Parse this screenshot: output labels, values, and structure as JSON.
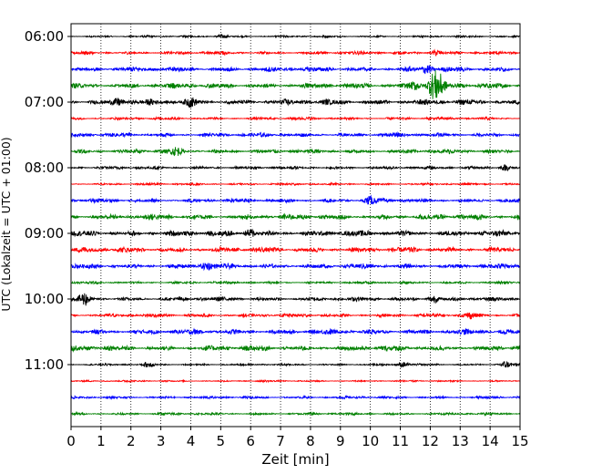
{
  "chart_data": {
    "type": "line",
    "xlabel": "Zeit  [min]",
    "ylabel": "UTC (Lokalzeit = UTC + 01:00)",
    "xlim": [
      0,
      15
    ],
    "xticks": [
      0,
      1,
      2,
      3,
      4,
      5,
      6,
      7,
      8,
      9,
      10,
      11,
      12,
      13,
      14,
      15
    ],
    "x_grid": true,
    "x_grid_style": "dotted",
    "y_tick_labels": [
      "06:00",
      "07:00",
      "08:00",
      "09:00",
      "10:00",
      "11:00"
    ],
    "row_interval_minutes": 15,
    "series": [
      {
        "start": "06:00",
        "color": "#000000",
        "amplitude": 0.35,
        "events": [
          {
            "x": 5.0,
            "amp": 0.6
          }
        ]
      },
      {
        "start": "06:15",
        "color": "#ff0000",
        "amplitude": 0.55,
        "events": [
          {
            "x": 12.2,
            "amp": 0.9
          }
        ]
      },
      {
        "start": "06:30",
        "color": "#0000ff",
        "amplitude": 0.85,
        "events": [
          {
            "x": 11.9,
            "amp": 1.3
          }
        ]
      },
      {
        "start": "06:45",
        "color": "#008000",
        "amplitude": 0.9,
        "events": [
          {
            "x": 11.5,
            "amp": 1.6
          },
          {
            "x": 12.1,
            "amp": 4.0
          },
          {
            "x": 12.3,
            "amp": 3.0
          }
        ]
      },
      {
        "start": "07:00",
        "color": "#000000",
        "amplitude": 0.95,
        "events": [
          {
            "x": 1.6,
            "amp": 1.3
          },
          {
            "x": 4.0,
            "amp": 1.0
          }
        ]
      },
      {
        "start": "07:15",
        "color": "#ff0000",
        "amplitude": 0.5,
        "events": []
      },
      {
        "start": "07:30",
        "color": "#0000ff",
        "amplitude": 0.7,
        "events": []
      },
      {
        "start": "07:45",
        "color": "#008000",
        "amplitude": 0.75,
        "events": [
          {
            "x": 3.5,
            "amp": 1.0
          }
        ]
      },
      {
        "start": "08:00",
        "color": "#000000",
        "amplitude": 0.55,
        "events": [
          {
            "x": 14.5,
            "amp": 0.9
          }
        ]
      },
      {
        "start": "08:15",
        "color": "#ff0000",
        "amplitude": 0.4,
        "events": []
      },
      {
        "start": "08:30",
        "color": "#0000ff",
        "amplitude": 0.7,
        "events": [
          {
            "x": 10.0,
            "amp": 1.0
          }
        ]
      },
      {
        "start": "08:45",
        "color": "#008000",
        "amplitude": 0.95,
        "events": []
      },
      {
        "start": "09:00",
        "color": "#000000",
        "amplitude": 1.0,
        "events": [
          {
            "x": 6.0,
            "amp": 1.2
          }
        ]
      },
      {
        "start": "09:15",
        "color": "#ff0000",
        "amplitude": 0.95,
        "events": []
      },
      {
        "start": "09:30",
        "color": "#0000ff",
        "amplitude": 0.85,
        "events": [
          {
            "x": 4.5,
            "amp": 1.1
          }
        ]
      },
      {
        "start": "09:45",
        "color": "#008000",
        "amplitude": 0.45,
        "events": []
      },
      {
        "start": "10:00",
        "color": "#000000",
        "amplitude": 0.7,
        "events": [
          {
            "x": 0.45,
            "amp": 1.8
          },
          {
            "x": 12.1,
            "amp": 1.2
          }
        ]
      },
      {
        "start": "10:15",
        "color": "#ff0000",
        "amplitude": 0.65,
        "events": [
          {
            "x": 13.3,
            "amp": 0.9
          }
        ]
      },
      {
        "start": "10:30",
        "color": "#0000ff",
        "amplitude": 0.9,
        "events": []
      },
      {
        "start": "10:45",
        "color": "#008000",
        "amplitude": 0.95,
        "events": []
      },
      {
        "start": "11:00",
        "color": "#000000",
        "amplitude": 0.35,
        "events": [
          {
            "x": 2.6,
            "amp": 0.8
          },
          {
            "x": 11.1,
            "amp": 0.8
          },
          {
            "x": 14.5,
            "amp": 1.2
          }
        ]
      },
      {
        "start": "11:15",
        "color": "#ff0000",
        "amplitude": 0.3,
        "events": []
      },
      {
        "start": "11:30",
        "color": "#0000ff",
        "amplitude": 0.45,
        "events": []
      },
      {
        "start": "11:45",
        "color": "#008000",
        "amplitude": 0.45,
        "events": []
      }
    ]
  }
}
